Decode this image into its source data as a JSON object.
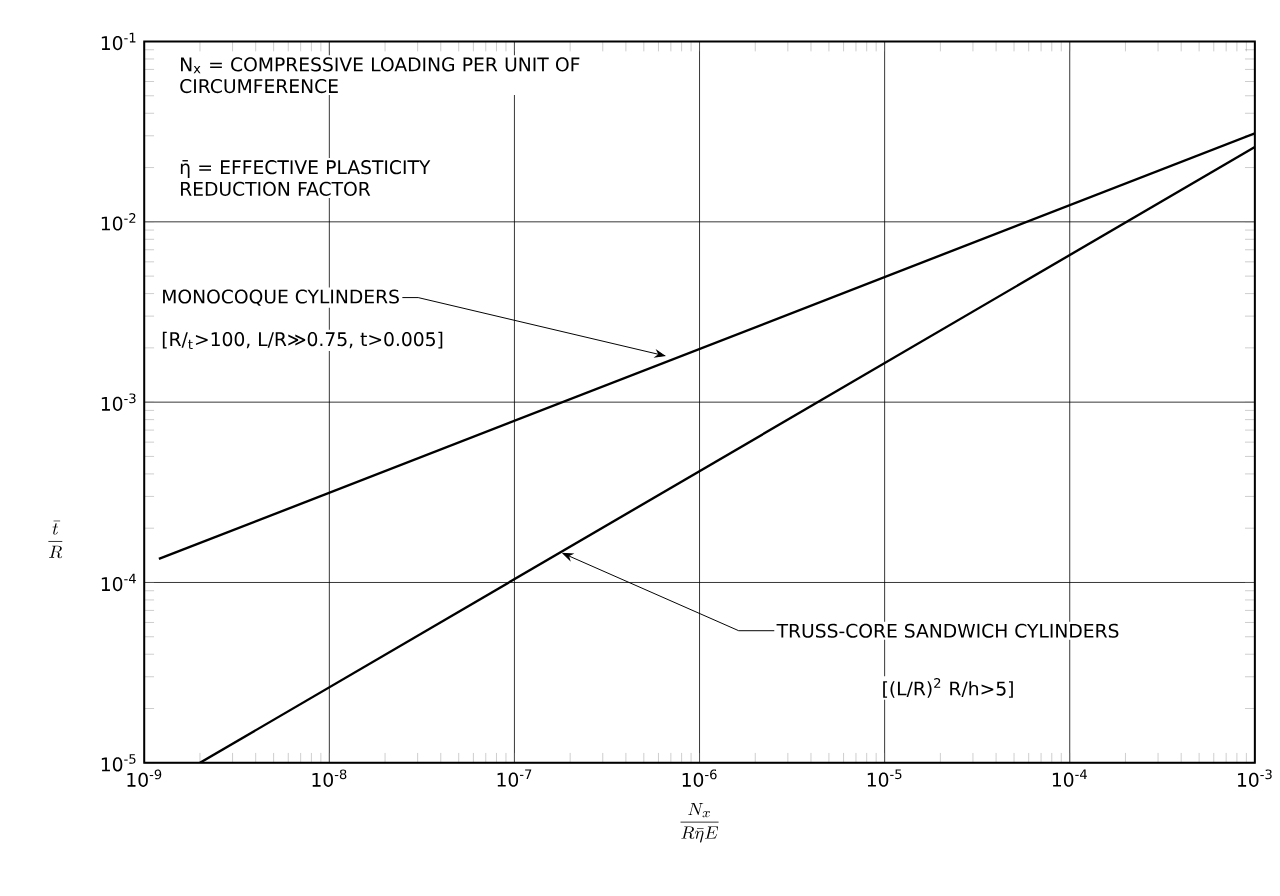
{
  "chart_data": {
    "type": "line",
    "xlabel": "\\frac{N_x}{R\\bar{\\eta}E}",
    "ylabel": "\\frac{\\bar{t}}{R}",
    "log": "xy",
    "grid": true,
    "xlim": [
      1e-09,
      0.001
    ],
    "ylim": [
      1e-05,
      0.1
    ],
    "xticks": [
      {
        "value": 1e-09,
        "label": "10$^{-9}$"
      },
      {
        "value": 1e-08,
        "label": "10$^{-8}$"
      },
      {
        "value": 1e-07,
        "label": "10$^{-7}$"
      },
      {
        "value": 1e-06,
        "label": "10$^{-6}$"
      },
      {
        "value": 1e-05,
        "label": "10$^{-5}$"
      },
      {
        "value": 0.0001,
        "label": "10$^{-4}$"
      },
      {
        "value": 0.001,
        "label": "10$^{-3}$"
      }
    ],
    "yticks": [
      {
        "value": 1e-05,
        "label": "10$^{-5}$"
      },
      {
        "value": 0.0001,
        "label": "10$^{-4}$"
      },
      {
        "value": 0.001,
        "label": "10$^{-3}$"
      },
      {
        "value": 0.01,
        "label": "10$^{-2}$"
      },
      {
        "value": 0.1,
        "label": "10$^{-1}$"
      }
    ],
    "series": [
      {
        "color": "#000000",
        "x": [
          1.2e-09,
          0.001
        ],
        "values": [
          0.000135,
          0.031
        ]
      },
      {
        "color": "#000000",
        "x": [
          2e-09,
          0.001
        ],
        "values": [
          1e-05,
          0.026
        ]
      }
    ],
    "annotations": [
      "N$_{x}$ = COMPRESSIVE LOADING PER UNIT OF CIRCUMFERENCE",
      "η̄ = EFFECTIVE PLASTICITY REDUCTION FACTOR",
      {
        "text": "MONOCOQUE CYLINDERS",
        "x": 6.6e-07,
        "y": 0.0018
      },
      "[R/$_{t}$>100, L/R≫0.75, t>0.005]",
      {
        "text": "TRUSS-CORE SANDWICH CYLINDERS",
        "x": 1.8e-07,
        "y": 0.000146
      },
      "[(L/R)$^{2}$ R/h>5]"
    ]
  }
}
